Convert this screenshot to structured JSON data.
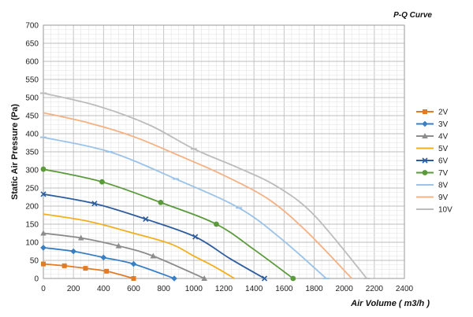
{
  "chart_data": {
    "type": "line",
    "title": "P-Q Curve",
    "xlabel": "Air Volume ( m3/h )",
    "ylabel": "Static Air Pressure (Pa)",
    "xlim": [
      0,
      2400
    ],
    "ylim": [
      0,
      700
    ],
    "x_ticks": [
      0,
      200,
      400,
      600,
      800,
      1000,
      1200,
      1400,
      1600,
      1800,
      2000,
      2200,
      2400
    ],
    "y_ticks": [
      0,
      50,
      100,
      150,
      200,
      250,
      300,
      350,
      400,
      450,
      500,
      550,
      600,
      650,
      700
    ],
    "grid": "on",
    "legend_position": "right",
    "series": [
      {
        "name": "2V",
        "color": "#e07b28",
        "marker": "square",
        "points": [
          [
            0,
            40
          ],
          [
            140,
            35
          ],
          [
            280,
            28
          ],
          [
            420,
            20
          ],
          [
            600,
            0
          ]
        ],
        "marker_points": [
          [
            0,
            40
          ],
          [
            140,
            35
          ],
          [
            280,
            28
          ],
          [
            420,
            20
          ],
          [
            600,
            0
          ]
        ]
      },
      {
        "name": "3V",
        "color": "#3a7fc4",
        "marker": "diamond",
        "points": [
          [
            0,
            85
          ],
          [
            200,
            75
          ],
          [
            400,
            58
          ],
          [
            600,
            40
          ],
          [
            870,
            0
          ]
        ],
        "marker_points": [
          [
            0,
            85
          ],
          [
            200,
            75
          ],
          [
            400,
            58
          ],
          [
            600,
            40
          ],
          [
            870,
            0
          ]
        ]
      },
      {
        "name": "4V",
        "color": "#8c8c8c",
        "marker": "triangle",
        "points": [
          [
            0,
            125
          ],
          [
            250,
            112
          ],
          [
            500,
            90
          ],
          [
            730,
            62
          ],
          [
            1070,
            0
          ]
        ],
        "marker_points": [
          [
            0,
            125
          ],
          [
            250,
            112
          ],
          [
            500,
            90
          ],
          [
            730,
            62
          ],
          [
            1070,
            0
          ]
        ]
      },
      {
        "name": "5V",
        "color": "#f2b01e",
        "marker": "none",
        "points": [
          [
            0,
            178
          ],
          [
            300,
            158
          ],
          [
            600,
            125
          ],
          [
            850,
            95
          ],
          [
            1000,
            62
          ],
          [
            1140,
            32
          ],
          [
            1270,
            0
          ]
        ],
        "marker_points": []
      },
      {
        "name": "6V",
        "color": "#2e5d9e",
        "marker": "x",
        "points": [
          [
            0,
            233
          ],
          [
            340,
            207
          ],
          [
            680,
            164
          ],
          [
            1010,
            115
          ],
          [
            1240,
            55
          ],
          [
            1470,
            0
          ]
        ],
        "marker_points": [
          [
            0,
            233
          ],
          [
            340,
            207
          ],
          [
            680,
            164
          ],
          [
            1010,
            115
          ],
          [
            1470,
            0
          ]
        ]
      },
      {
        "name": "7V",
        "color": "#5a9a3a",
        "marker": "circle",
        "points": [
          [
            0,
            302
          ],
          [
            390,
            267
          ],
          [
            780,
            210
          ],
          [
            1150,
            150
          ],
          [
            1400,
            80
          ],
          [
            1660,
            0
          ]
        ],
        "marker_points": [
          [
            0,
            302
          ],
          [
            390,
            267
          ],
          [
            780,
            210
          ],
          [
            1150,
            150
          ],
          [
            1660,
            0
          ]
        ]
      },
      {
        "name": "8V",
        "color": "#9cc3e8",
        "marker": "dash",
        "points": [
          [
            0,
            390
          ],
          [
            440,
            350
          ],
          [
            880,
            275
          ],
          [
            1300,
            195
          ],
          [
            1580,
            110
          ],
          [
            1880,
            0
          ]
        ],
        "marker_points": [
          [
            0,
            390
          ],
          [
            440,
            350
          ],
          [
            880,
            275
          ],
          [
            1300,
            195
          ],
          [
            1880,
            0
          ]
        ]
      },
      {
        "name": "9V",
        "color": "#f4b183",
        "marker": "none",
        "points": [
          [
            0,
            458
          ],
          [
            300,
            430
          ],
          [
            600,
            392
          ],
          [
            900,
            340
          ],
          [
            1200,
            285
          ],
          [
            1500,
            218
          ],
          [
            1750,
            130
          ],
          [
            2050,
            0
          ]
        ],
        "marker_points": []
      },
      {
        "name": "10V",
        "color": "#bcbcbc",
        "marker": "dash",
        "points": [
          [
            0,
            512
          ],
          [
            350,
            478
          ],
          [
            700,
            425
          ],
          [
            1000,
            358
          ],
          [
            1300,
            305
          ],
          [
            1550,
            255
          ],
          [
            1800,
            175
          ],
          [
            2150,
            0
          ]
        ],
        "marker_points": [
          [
            0,
            512
          ],
          [
            1000,
            358
          ],
          [
            2150,
            0
          ]
        ]
      }
    ]
  }
}
